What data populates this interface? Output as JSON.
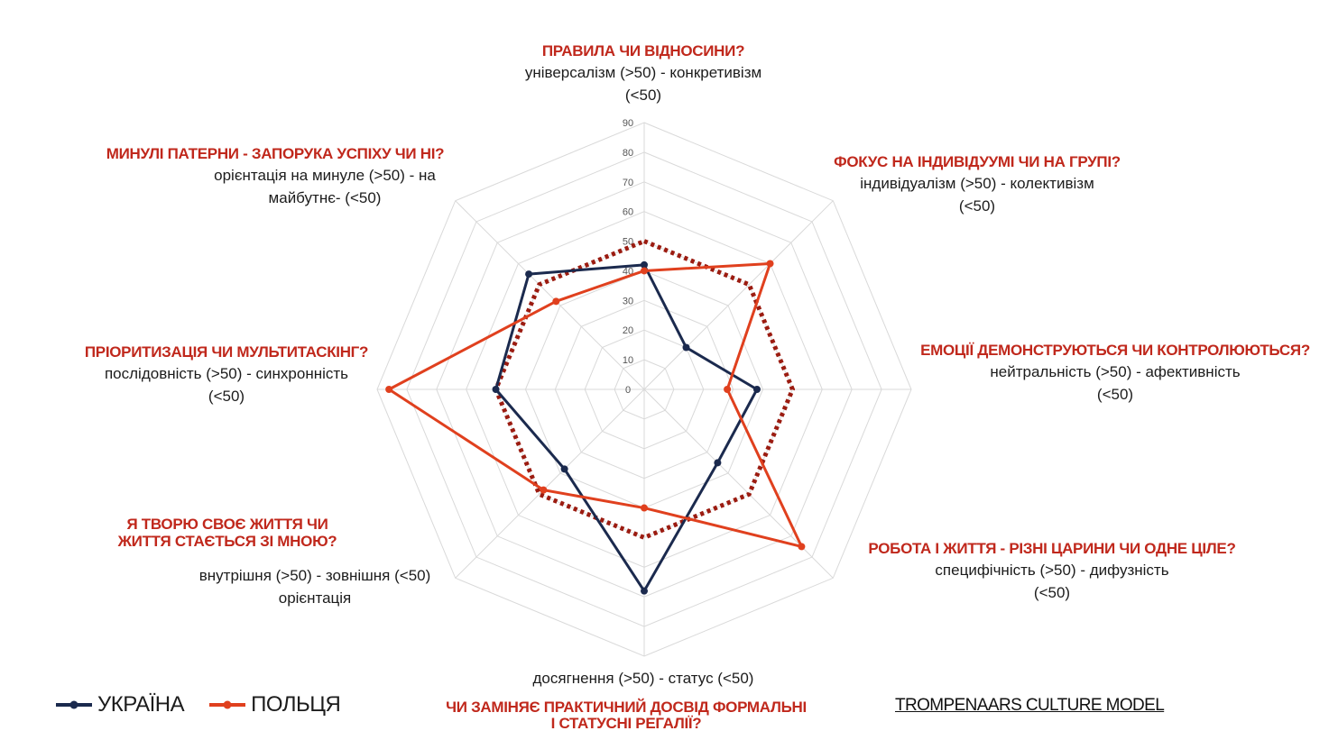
{
  "chart_data": {
    "type": "radar",
    "rlim": [
      0,
      90
    ],
    "ticks": [
      "0",
      "10",
      "20",
      "30",
      "40",
      "50",
      "60",
      "70",
      "80",
      "90"
    ],
    "reference_value": 50,
    "axes": [
      {
        "question": "ПРАВИЛА ЧИ ВІДНОСИНИ?",
        "desc": "універсалізм (>50) - конкретивізм\n(<50)"
      },
      {
        "question": "ФОКУС НА ІНДИВІДУУМІ ЧИ НА ГРУПІ?",
        "desc": "індивідуалізм (>50) - колективізм\n(<50)"
      },
      {
        "question": "ЕМОЦІЇ ДЕМОНСТРУЮТЬСЯ ЧИ КОНТРОЛЮЮТЬСЯ?",
        "desc": "нейтральність (>50) - афективність\n(<50)"
      },
      {
        "question": "РОБОТА І ЖИТТЯ - РІЗНІ ЦАРИНИ ЧИ ОДНЕ ЦІЛЕ?",
        "desc": "специфічність (>50) - дифузність\n(<50)"
      },
      {
        "question": "ЧИ ЗАМІНЯЄ ПРАКТИЧНИЙ ДОСВІД ФОРМАЛЬНІ\nІ СТАТУСНІ РЕГАЛІЇ?",
        "desc": "досягнення (>50) - статус (<50)"
      },
      {
        "question": "Я ТВОРЮ СВОЄ ЖИТТЯ ЧИ\nЖИТТЯ СТАЄТЬСЯ ЗІ МНОЮ?",
        "desc": "внутрішня (>50) - зовнішня (<50)\nорієнтація"
      },
      {
        "question": "ПРІОРИТИЗАЦІЯ ЧИ МУЛЬТИТАСКІНГ?",
        "desc": "послідовність (>50) - синхронність\n(<50)"
      },
      {
        "question": "МИНУЛІ ПАТЕРНИ - ЗАПОРУКА УСПІХУ ЧИ НІ?",
        "desc": "орієнтація на минуле (>50) - на\nмайбутнє- (<50)"
      }
    ],
    "series": [
      {
        "name": "УКРАЇНА",
        "color": "#1b2a4e",
        "values": [
          42,
          20,
          38,
          35,
          68,
          38,
          50,
          55
        ]
      },
      {
        "name": "ПОЛЬЦЯ",
        "color": "#e0401e",
        "values": [
          40,
          60,
          28,
          75,
          40,
          48,
          86,
          42
        ]
      }
    ],
    "reference_color": "#9b1b10"
  },
  "footer": {
    "model_title": "TROMPENAARS CULTURE MODEL"
  }
}
